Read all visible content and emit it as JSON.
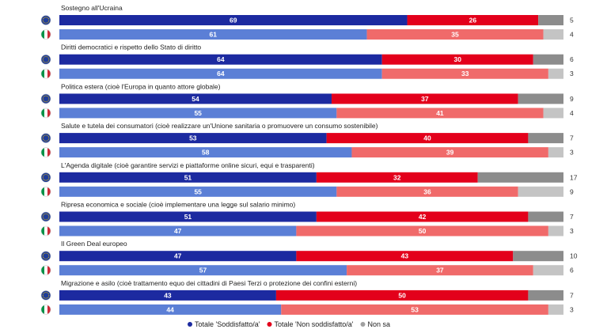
{
  "chart_data": {
    "type": "bar",
    "stacked": true,
    "orientation": "horizontal",
    "xlim": [
      0,
      100
    ],
    "colors": {
      "eu_soddisfatto": "#1c2aa0",
      "eu_non_soddisfatto": "#e3001b",
      "it_soddisfatto": "#5b7fd6",
      "it_non_soddisfatto": "#f06a6a",
      "eu_non_sa": "#8c8c8c",
      "it_non_sa": "#c4c4c4"
    },
    "flags": [
      "EU",
      "IT"
    ],
    "categories": [
      {
        "title": "Sostegno all'Ucraina",
        "rows": [
          [
            69,
            26,
            5
          ],
          [
            61,
            35,
            4
          ]
        ]
      },
      {
        "title": "Diritti democratici e rispetto dello Stato di diritto",
        "rows": [
          [
            64,
            30,
            6
          ],
          [
            64,
            33,
            3
          ]
        ]
      },
      {
        "title": "Politica estera (cioè l'Europa in quanto attore globale)",
        "rows": [
          [
            54,
            37,
            9
          ],
          [
            55,
            41,
            4
          ]
        ]
      },
      {
        "title": "Salute e tutela dei consumatori (cioè realizzare un'Unione sanitaria o promuovere un consumo sostenibile)",
        "rows": [
          [
            53,
            40,
            7
          ],
          [
            58,
            39,
            3
          ]
        ]
      },
      {
        "title": "L'Agenda digitale (cioè garantire servizi e piattaforme online sicuri, equi e trasparenti)",
        "rows": [
          [
            51,
            32,
            17
          ],
          [
            55,
            36,
            9
          ]
        ]
      },
      {
        "title": "Ripresa economica e sociale (cioè implementare una legge sul salario minimo)",
        "rows": [
          [
            51,
            42,
            7
          ],
          [
            47,
            50,
            3
          ]
        ]
      },
      {
        "title": "Il Green Deal europeo",
        "rows": [
          [
            47,
            43,
            10
          ],
          [
            57,
            37,
            6
          ]
        ]
      },
      {
        "title": "Migrazione e asilo (cioè trattamento equo dei cittadini di Paesi Terzi o protezione dei confini esterni)",
        "rows": [
          [
            43,
            50,
            7
          ],
          [
            44,
            53,
            3
          ]
        ]
      }
    ],
    "legend": [
      {
        "label": "Totale 'Soddisfatto/a'",
        "color": "#1c2aa0"
      },
      {
        "label": "Totale 'Non soddisfatto/a'",
        "color": "#e3001b"
      },
      {
        "label": "Non sa",
        "color": "#a0a0a0"
      }
    ],
    "legend_position": "bottom"
  }
}
